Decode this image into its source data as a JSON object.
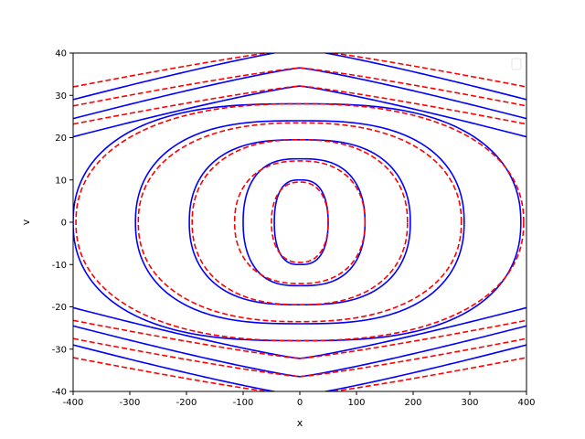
{
  "chart_data": {
    "type": "line",
    "title": "",
    "xlabel": "x",
    "ylabel": "v",
    "xlim": [
      -400,
      400
    ],
    "ylim": [
      -40,
      40
    ],
    "xticks": [
      -400,
      -300,
      -200,
      -100,
      0,
      100,
      200,
      300,
      400
    ],
    "yticks": [
      -40,
      -30,
      -20,
      -10,
      0,
      10,
      20,
      30,
      40
    ],
    "grid": false,
    "legend": {
      "placement": "top-right",
      "entries": []
    },
    "series": [
      {
        "style": "solid",
        "color": "#0000ff",
        "closed_contours": [
          {
            "center_x": 0,
            "x_left": -45,
            "x_right": 50,
            "v_top": 10
          },
          {
            "center_x": 0,
            "x_left": -100,
            "x_right": 115,
            "v_top": 15
          },
          {
            "center_x": 0,
            "x_left": -195,
            "x_right": 195,
            "v_top": 19.5
          },
          {
            "center_x": 0,
            "x_left": -290,
            "x_right": 290,
            "v_top": 24
          },
          {
            "center_x": 0,
            "x_left": -400,
            "x_right": 390,
            "v_top": 28
          }
        ],
        "open_contours_v_at_x0": [
          32.2,
          36.5,
          41
        ]
      },
      {
        "style": "dashed",
        "color": "#ff0000",
        "closed_contours": [
          {
            "center_x": 0,
            "x_left": -50,
            "x_right": 50,
            "v_top": 9.5
          },
          {
            "center_x": 0,
            "x_left": -115,
            "x_right": 115,
            "v_top": 14.5
          },
          {
            "center_x": 0,
            "x_left": -190,
            "x_right": 190,
            "v_top": 19.5
          },
          {
            "center_x": 0,
            "x_left": -285,
            "x_right": 285,
            "v_top": 23.5
          },
          {
            "center_x": 0,
            "x_left": -395,
            "x_right": 395,
            "v_top": 28
          }
        ],
        "open_contours_v_at_x0": [
          32.2,
          36.5,
          41
        ]
      }
    ]
  }
}
